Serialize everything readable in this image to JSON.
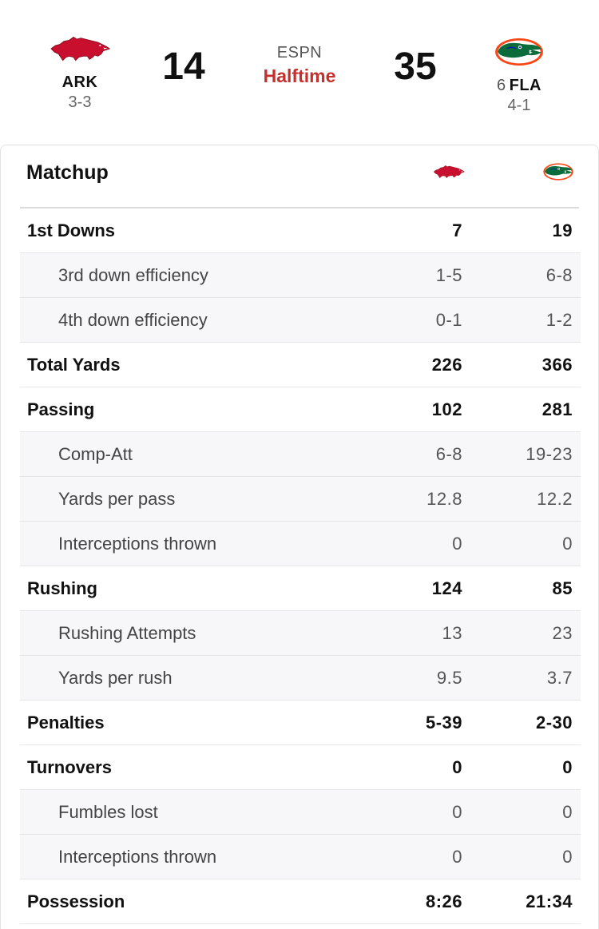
{
  "game": {
    "network": "ESPN",
    "status": "Halftime",
    "away": {
      "abbr": "ARK",
      "record": "3-3",
      "rank": "",
      "score": "14",
      "logo_icon": "razorback-logo-icon",
      "color": "#c8102e"
    },
    "home": {
      "abbr": "FLA",
      "record": "4-1",
      "rank": "6",
      "score": "35",
      "logo_icon": "gator-logo-icon",
      "color": "#0021a5"
    },
    "status_color": "#c4302b"
  },
  "matchup": {
    "title": "Matchup",
    "rows": [
      {
        "label": "1st Downs",
        "away": "7",
        "home": "19",
        "type": "main"
      },
      {
        "label": "3rd down efficiency",
        "away": "1-5",
        "home": "6-8",
        "type": "sub"
      },
      {
        "label": "4th down efficiency",
        "away": "0-1",
        "home": "1-2",
        "type": "sub"
      },
      {
        "label": "Total Yards",
        "away": "226",
        "home": "366",
        "type": "main"
      },
      {
        "label": "Passing",
        "away": "102",
        "home": "281",
        "type": "main"
      },
      {
        "label": "Comp-Att",
        "away": "6-8",
        "home": "19-23",
        "type": "sub"
      },
      {
        "label": "Yards per pass",
        "away": "12.8",
        "home": "12.2",
        "type": "sub"
      },
      {
        "label": "Interceptions thrown",
        "away": "0",
        "home": "0",
        "type": "sub"
      },
      {
        "label": "Rushing",
        "away": "124",
        "home": "85",
        "type": "main"
      },
      {
        "label": "Rushing Attempts",
        "away": "13",
        "home": "23",
        "type": "sub"
      },
      {
        "label": "Yards per rush",
        "away": "9.5",
        "home": "3.7",
        "type": "sub"
      },
      {
        "label": "Penalties",
        "away": "5-39",
        "home": "2-30",
        "type": "main"
      },
      {
        "label": "Turnovers",
        "away": "0",
        "home": "0",
        "type": "main"
      },
      {
        "label": "Fumbles lost",
        "away": "0",
        "home": "0",
        "type": "sub"
      },
      {
        "label": "Interceptions thrown",
        "away": "0",
        "home": "0",
        "type": "sub"
      },
      {
        "label": "Possession",
        "away": "8:26",
        "home": "21:34",
        "type": "main"
      }
    ]
  }
}
